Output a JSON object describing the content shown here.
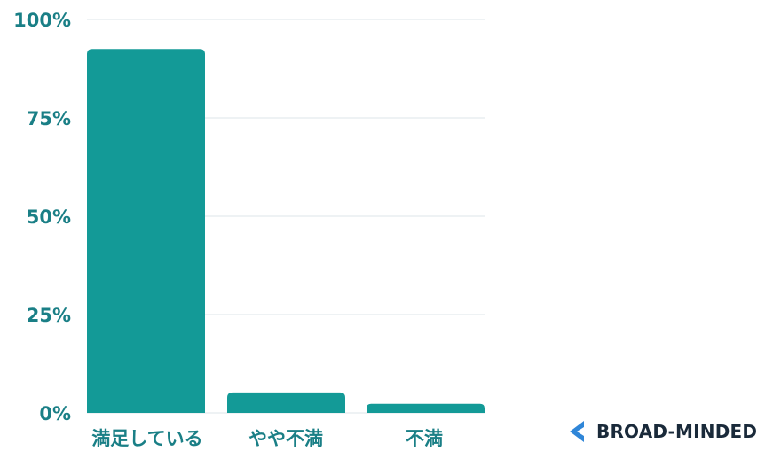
{
  "chart_data": {
    "type": "bar",
    "categories": [
      "満足している",
      "やや不満",
      "不満"
    ],
    "values": [
      92.5,
      5.2,
      2.3
    ],
    "y_ticks": [
      "0%",
      "25%",
      "50%",
      "75%",
      "100%"
    ],
    "y_tick_values": [
      0,
      25,
      50,
      75,
      100
    ],
    "ylim": [
      0,
      100
    ],
    "grid": true,
    "title": "",
    "xlabel": "",
    "ylabel": ""
  },
  "colors": {
    "bar": "#139a97",
    "tick_text": "#1a7f86",
    "category_text": "#1a7f86",
    "grid": "#e9eef0",
    "logo_mark": "#2f86d8",
    "logo_text": "#1a2a3a"
  },
  "logo": {
    "text": "BROAD-MINDED",
    "icon": "chevron-left-icon"
  }
}
